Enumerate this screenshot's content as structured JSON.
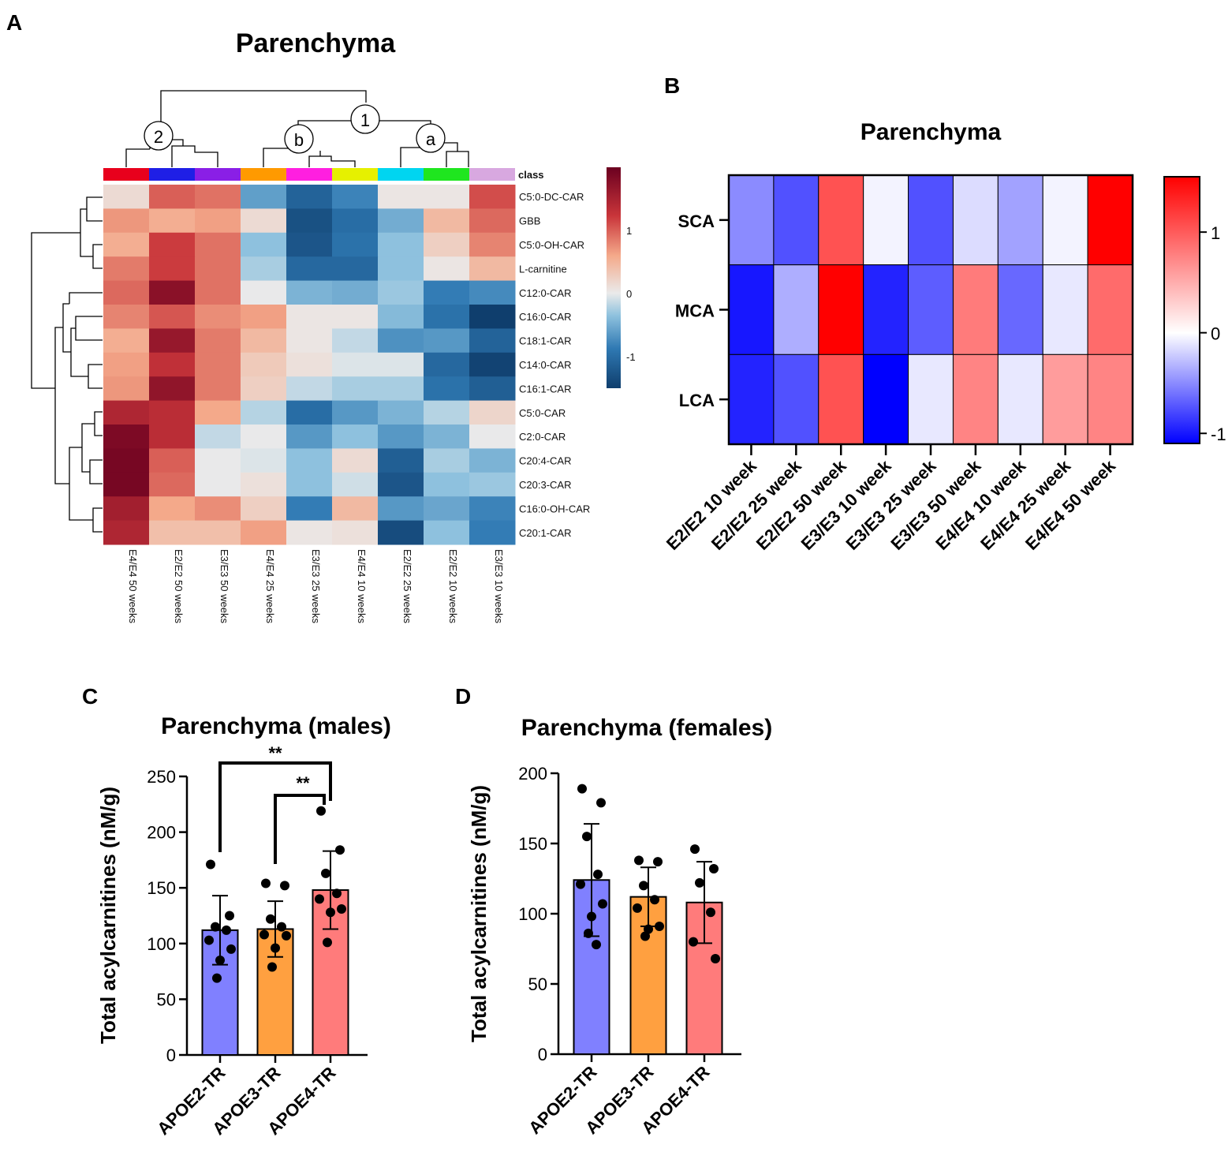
{
  "panels": {
    "A": "A",
    "B": "B",
    "C": "C",
    "D": "D"
  },
  "chart_data": [
    {
      "id": "A",
      "type": "heatmap",
      "title": "Parenchyma",
      "class_label": "class",
      "class_colors": [
        "#e8001c",
        "#1f1fe6",
        "#8a1fe6",
        "#ff9a00",
        "#ff1fe0",
        "#e6f000",
        "#00d5f0",
        "#1fe61f",
        "#d8a8e0"
      ],
      "columns": [
        "E4/E4 50 weeks",
        "E2/E2 50 weeks",
        "E3/E3 50 weeks",
        "E4/E4 25 weeks",
        "E3/E3 25 weeks",
        "E4/E4 10 weeks",
        "E2/E2 25 weeks",
        "E2/E2 10 weeks",
        "E3/E3 10 weeks"
      ],
      "rows": [
        "C5:0-DC-CAR",
        "GBB",
        "C5:0-OH-CAR",
        "L-carnitine",
        "C12:0-CAR",
        "C16:0-CAR",
        "C18:1-CAR",
        "C14:0-CAR",
        "C16:1-CAR",
        "C5:0-CAR",
        "C2:0-CAR",
        "C20:4-CAR",
        "C20:3-CAR",
        "C16:0-OH-CAR",
        "C20:1-CAR"
      ],
      "values": [
        [
          0.15,
          1.0,
          0.9,
          -0.6,
          -1.1,
          -0.8,
          0.05,
          0.05,
          1.1
        ],
        [
          0.7,
          0.55,
          0.65,
          0.15,
          -1.3,
          -1.0,
          -0.5,
          0.45,
          0.95
        ],
        [
          0.55,
          1.2,
          0.9,
          -0.35,
          -1.25,
          -0.95,
          -0.35,
          0.25,
          0.8
        ],
        [
          0.85,
          1.2,
          0.9,
          -0.25,
          -1.05,
          -1.05,
          -0.35,
          0.05,
          0.45
        ],
        [
          0.95,
          1.75,
          0.9,
          0.0,
          -0.45,
          -0.5,
          -0.3,
          -0.85,
          -0.75
        ],
        [
          0.8,
          1.05,
          0.75,
          0.65,
          0.05,
          0.05,
          -0.4,
          -0.95,
          -1.5
        ],
        [
          0.55,
          1.65,
          0.85,
          0.45,
          0.05,
          -0.15,
          -0.7,
          -0.65,
          -1.1
        ],
        [
          0.65,
          1.3,
          0.85,
          0.3,
          0.1,
          -0.05,
          -0.05,
          -1.05,
          -1.45
        ],
        [
          0.7,
          1.7,
          0.85,
          0.25,
          -0.15,
          -0.25,
          -0.25,
          -0.95,
          -1.15
        ],
        [
          1.45,
          1.35,
          0.6,
          -0.2,
          -1.0,
          -0.65,
          -0.45,
          -0.2,
          0.2
        ],
        [
          1.85,
          1.35,
          -0.15,
          0.0,
          -0.65,
          -0.35,
          -0.65,
          -0.45,
          0.0
        ],
        [
          1.9,
          1.0,
          0.0,
          -0.05,
          -0.35,
          0.15,
          -1.15,
          -0.25,
          -0.45
        ],
        [
          1.9,
          0.95,
          0.0,
          0.1,
          -0.35,
          -0.1,
          -1.25,
          -0.35,
          -0.3
        ],
        [
          1.55,
          0.6,
          0.75,
          0.25,
          -0.85,
          0.45,
          -0.65,
          -0.55,
          -0.8
        ],
        [
          1.45,
          0.4,
          0.4,
          0.65,
          0.05,
          0.1,
          -1.35,
          -0.35,
          -0.85
        ]
      ],
      "cluster_labels": [
        "2",
        "1",
        "b",
        "a"
      ],
      "colorbar_ticks": [
        "1",
        "0",
        "-1"
      ],
      "colorbar_tick_values": [
        1,
        0,
        -1
      ],
      "range": [
        -1.5,
        2.0
      ]
    },
    {
      "id": "B",
      "type": "heatmap",
      "title": "Parenchyma",
      "rows": [
        "SCA",
        "MCA",
        "LCA"
      ],
      "columns": [
        "E2/E2 10 week",
        "E2/E2 25 week",
        "E2/E2 50 week",
        "E3/E3 10 week",
        "E3/E3 25 week",
        "E3/E3 50 week",
        "E4/E4 10 week",
        "E4/E4 25 week",
        "E4/E4 50 week"
      ],
      "values": [
        [
          -0.5,
          -0.75,
          1.05,
          -0.05,
          -0.75,
          -0.15,
          -0.4,
          -0.05,
          1.55
        ],
        [
          -1.0,
          -0.35,
          1.55,
          -0.95,
          -0.7,
          0.8,
          -0.65,
          -0.1,
          0.9
        ],
        [
          -0.95,
          -0.75,
          1.05,
          -1.25,
          -0.1,
          0.75,
          -0.1,
          0.6,
          0.75
        ]
      ],
      "colorbar_ticks": [
        "1",
        "0",
        "-1"
      ],
      "colorbar_tick_values": [
        1,
        0,
        -1
      ],
      "range": [
        -1.1,
        1.55
      ]
    },
    {
      "id": "C",
      "type": "bar",
      "title": "Parenchyma (males)",
      "ylabel": "Total acylcarnitines (nM/g)",
      "categories": [
        "APOE2-TR",
        "APOE3-TR",
        "APOE4-TR"
      ],
      "colors": [
        "#8080ff",
        "#ffa040",
        "#ff7b7b"
      ],
      "values": [
        112,
        113,
        148
      ],
      "sd": [
        31,
        25,
        35
      ],
      "points": [
        [
          171,
          125,
          115,
          112,
          103,
          95,
          85,
          69
        ],
        [
          154,
          152,
          122,
          115,
          108,
          107,
          96,
          79
        ],
        [
          219,
          184,
          163,
          145,
          140,
          131,
          128,
          101
        ]
      ],
      "ylim": [
        0,
        250
      ],
      "yticks": [
        0,
        50,
        100,
        150,
        200,
        250
      ],
      "significance": [
        {
          "from": 0,
          "to": 2,
          "label": "**"
        },
        {
          "from": 1,
          "to": 2,
          "label": "**"
        }
      ]
    },
    {
      "id": "D",
      "type": "bar",
      "title": "Parenchyma (females)",
      "ylabel": "Total acylcarnitines (nM/g)",
      "categories": [
        "APOE2-TR",
        "APOE3-TR",
        "APOE4-TR"
      ],
      "colors": [
        "#8080ff",
        "#ffa040",
        "#ff7b7b"
      ],
      "values": [
        124,
        112,
        108
      ],
      "sd": [
        40,
        21,
        29
      ],
      "points": [
        [
          189,
          179,
          155,
          128,
          121,
          107,
          98,
          86,
          78
        ],
        [
          138,
          137,
          120,
          110,
          104,
          91,
          89,
          84
        ],
        [
          146,
          132,
          122,
          101,
          80,
          68
        ]
      ],
      "ylim": [
        0,
        200
      ],
      "yticks": [
        0,
        50,
        100,
        150,
        200
      ]
    }
  ]
}
